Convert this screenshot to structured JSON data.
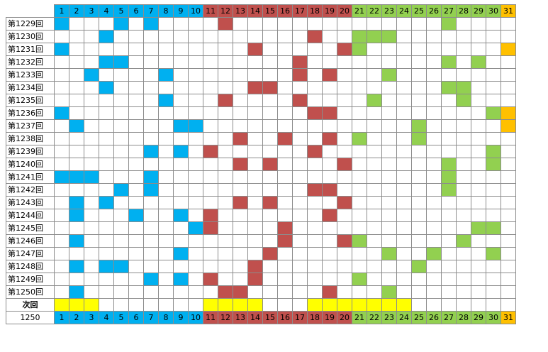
{
  "colors": {
    "blue": "#00b0f0",
    "red": "#c0504d",
    "green": "#92d050",
    "orange": "#ffc000",
    "yellow": "#ffff00",
    "header_blue": "#00b0f0",
    "header_red": "#c0504d",
    "header_green": "#92d050",
    "header_orange": "#ffc000"
  },
  "numbers": [
    "1",
    "2",
    "3",
    "4",
    "5",
    "6",
    "7",
    "8",
    "9",
    "10",
    "11",
    "12",
    "13",
    "14",
    "15",
    "16",
    "17",
    "18",
    "19",
    "20",
    "21",
    "22",
    "23",
    "24",
    "25",
    "26",
    "27",
    "28",
    "29",
    "30",
    "31"
  ],
  "draws": [
    {
      "label": "第1229回",
      "hits": [
        1,
        5,
        7,
        12,
        27
      ]
    },
    {
      "label": "第1230回",
      "hits": [
        4,
        18,
        21,
        22,
        23
      ]
    },
    {
      "label": "第1231回",
      "hits": [
        1,
        14,
        20,
        21,
        31
      ]
    },
    {
      "label": "第1232回",
      "hits": [
        4,
        5,
        17,
        27,
        29
      ]
    },
    {
      "label": "第1233回",
      "hits": [
        3,
        8,
        17,
        19,
        23
      ]
    },
    {
      "label": "第1234回",
      "hits": [
        4,
        14,
        15,
        27,
        28
      ]
    },
    {
      "label": "第1235回",
      "hits": [
        8,
        12,
        17,
        22,
        28
      ]
    },
    {
      "label": "第1236回",
      "hits": [
        1,
        18,
        19,
        30,
        31
      ]
    },
    {
      "label": "第1237回",
      "hits": [
        2,
        9,
        10,
        25,
        31
      ]
    },
    {
      "label": "第1238回",
      "hits": [
        13,
        16,
        19,
        21,
        25
      ]
    },
    {
      "label": "第1239回",
      "hits": [
        7,
        9,
        11,
        18,
        30
      ]
    },
    {
      "label": "第1240回",
      "hits": [
        13,
        15,
        20,
        27,
        30
      ]
    },
    {
      "label": "第1241回",
      "hits": [
        1,
        2,
        3,
        7,
        27
      ]
    },
    {
      "label": "第1242回",
      "hits": [
        5,
        7,
        18,
        19,
        27
      ]
    },
    {
      "label": "第1243回",
      "hits": [
        2,
        4,
        13,
        15,
        20
      ]
    },
    {
      "label": "第1244回",
      "hits": [
        2,
        6,
        9,
        11,
        19
      ]
    },
    {
      "label": "第1245回",
      "hits": [
        10,
        11,
        16,
        29,
        30
      ]
    },
    {
      "label": "第1246回",
      "hits": [
        2,
        16,
        20,
        21,
        28
      ]
    },
    {
      "label": "第1247回",
      "hits": [
        9,
        15,
        23,
        26,
        30
      ]
    },
    {
      "label": "第1248回",
      "hits": [
        2,
        4,
        5,
        14,
        25
      ]
    },
    {
      "label": "第1249回",
      "hits": [
        7,
        9,
        11,
        14,
        21
      ]
    },
    {
      "label": "第1250回",
      "hits": [
        2,
        12,
        13,
        19,
        23
      ]
    }
  ],
  "next_row": {
    "label": "次回",
    "highlight": [
      1,
      2,
      3,
      11,
      12,
      13,
      14,
      18,
      19,
      20,
      21,
      22,
      23,
      24
    ]
  },
  "footer": {
    "label": "1250"
  }
}
